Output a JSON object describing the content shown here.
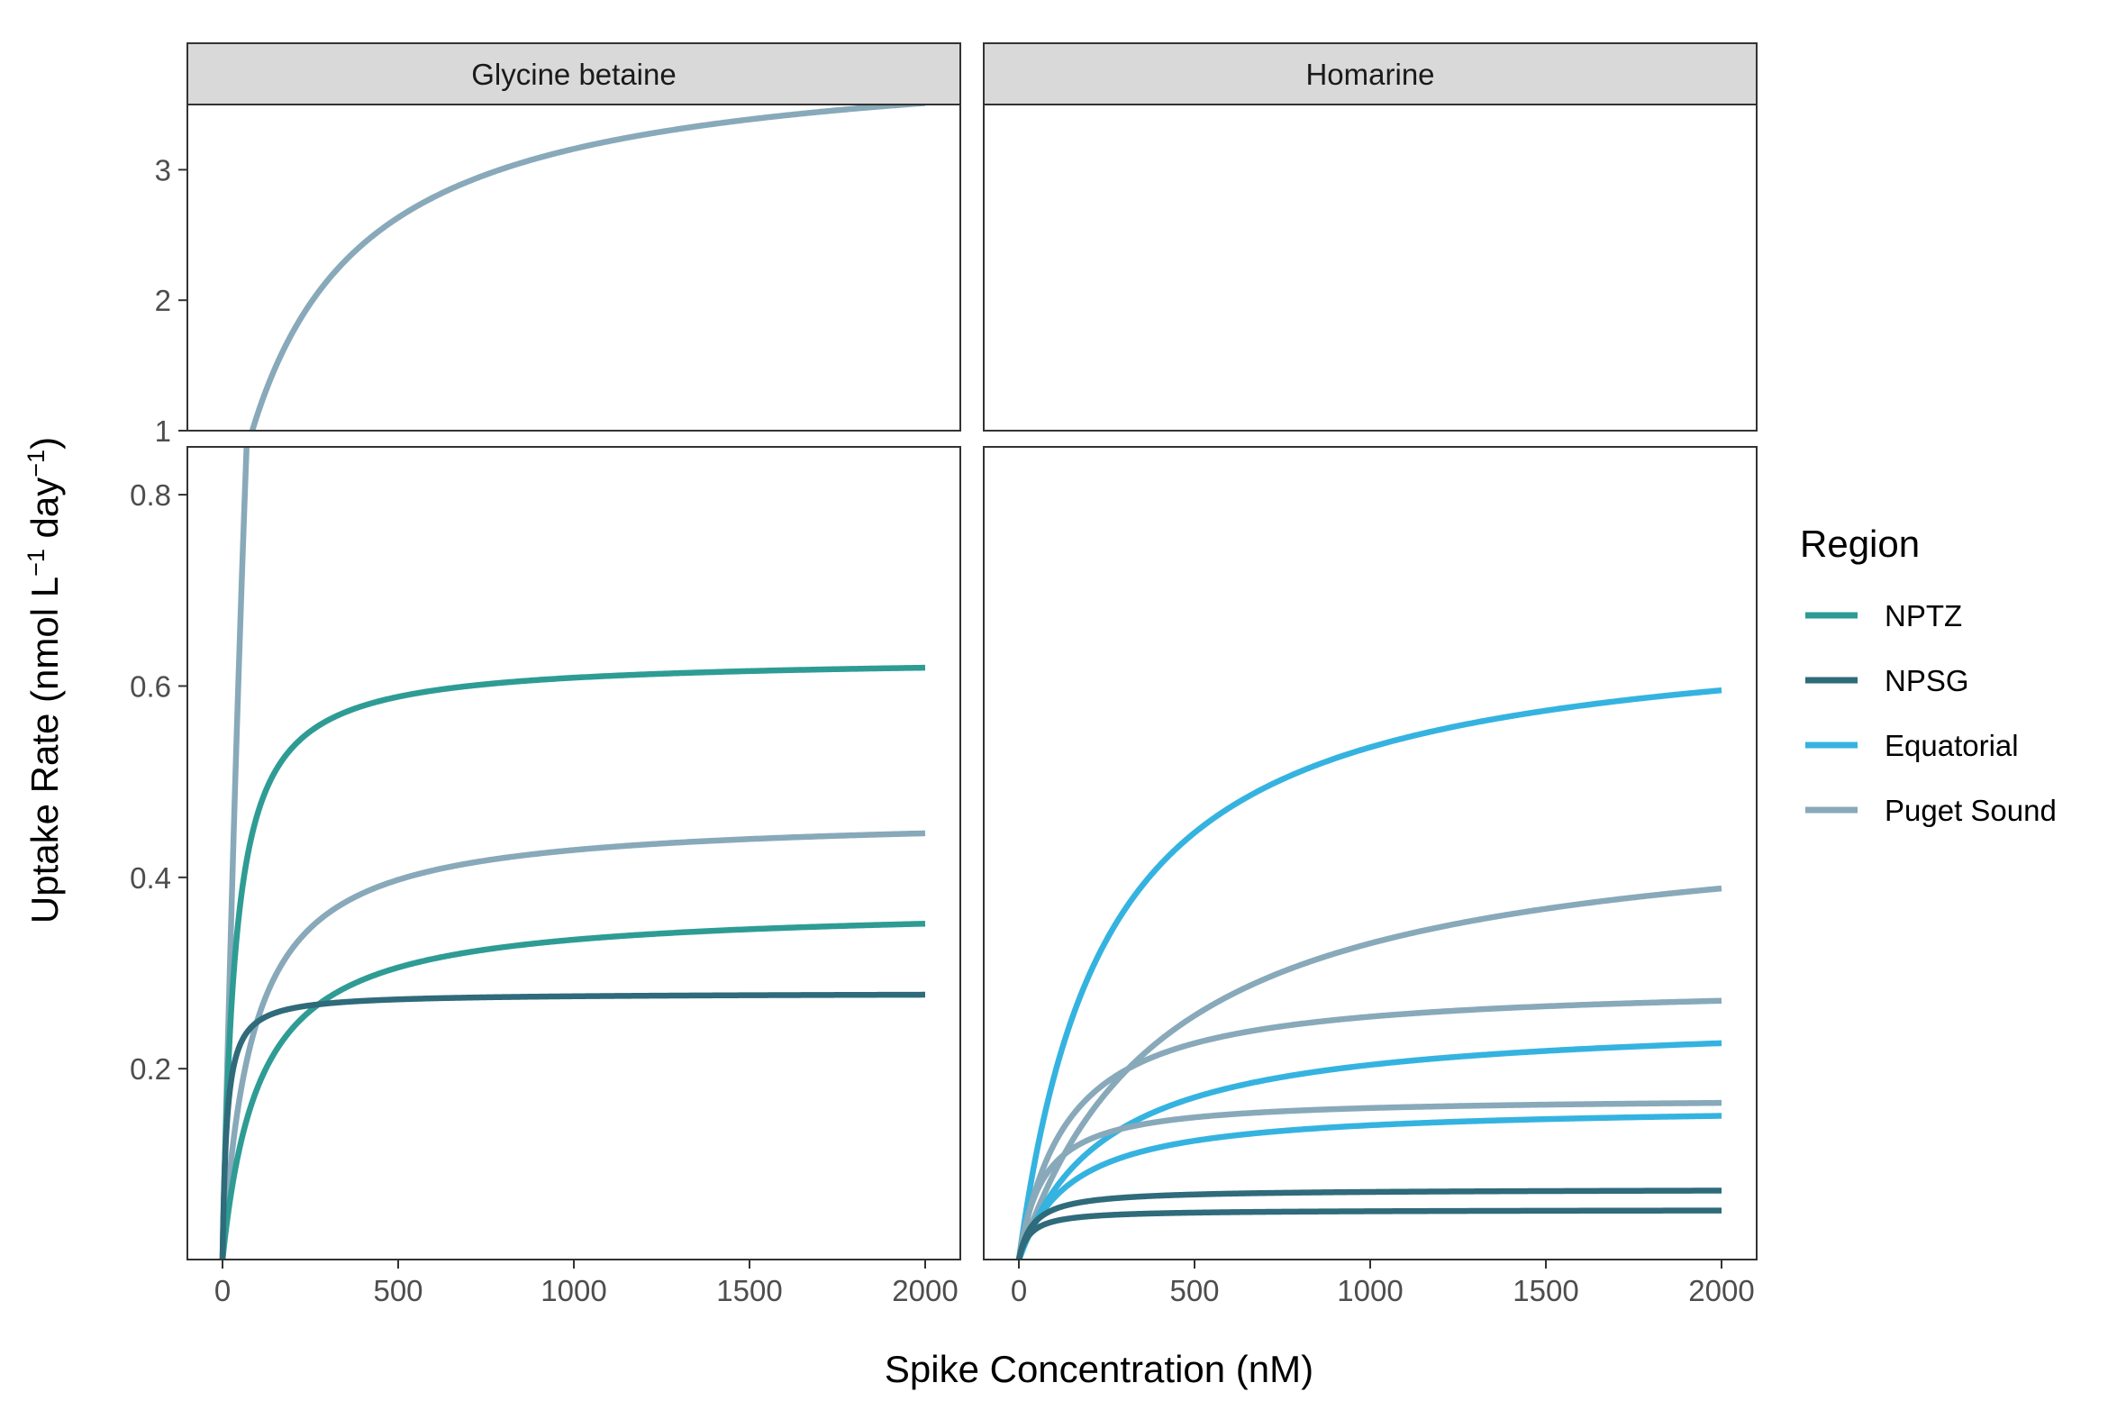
{
  "chart_data": {
    "type": "line",
    "facets": [
      "Glycine betaine",
      "Homarine"
    ],
    "xlabel": "Spike Concentration (nM)",
    "ylabel": "Uptake Rate (nmol L",
    "ylabel_sup1": "−1",
    "ylabel_mid": " day",
    "ylabel_sup2": "−1",
    "ylabel_end": ")",
    "xlim": [
      -100,
      2100
    ],
    "x_ticks": [
      0,
      500,
      1000,
      1500,
      2000
    ],
    "x_tick_labels": [
      "0",
      "500",
      "1000",
      "1500",
      "2000"
    ],
    "y_upper": {
      "lim": [
        1,
        3.5
      ],
      "ticks": [
        1,
        2,
        3
      ],
      "tick_labels": [
        "1",
        "2",
        "3"
      ]
    },
    "y_lower": {
      "lim": [
        0.0005,
        0.85
      ],
      "ticks": [
        0.2,
        0.4,
        0.6,
        0.8
      ],
      "tick_labels": [
        "0.2",
        "0.4",
        "0.6",
        "0.8"
      ]
    },
    "legend": {
      "title": "Region",
      "position": "right",
      "entries": [
        {
          "name": "NPTZ",
          "color": "#2e9c94"
        },
        {
          "name": "NPSG",
          "color": "#2f6b7a"
        },
        {
          "name": "Equatorial",
          "color": "#35b3e0"
        },
        {
          "name": "Puget Sound",
          "color": "#88a9b9"
        }
      ]
    },
    "series": [
      {
        "facet": 0,
        "region": "Puget Sound",
        "vmax": 3.95,
        "k": 250,
        "s0": 0,
        "xmin": 0,
        "xmax": 2000
      },
      {
        "facet": 0,
        "region": "NPTZ",
        "vmax": 0.63,
        "k": 35,
        "s0": 0,
        "xmin": 0,
        "xmax": 2000
      },
      {
        "facet": 0,
        "region": "Puget Sound",
        "vmax": 0.465,
        "k": 85,
        "s0": 0,
        "xmin": 0,
        "xmax": 2000
      },
      {
        "facet": 0,
        "region": "NPTZ",
        "vmax": 0.37,
        "k": 105,
        "s0": 0,
        "xmin": 0,
        "xmax": 2000
      },
      {
        "facet": 0,
        "region": "NPSG",
        "vmax": 0.279,
        "k": 12,
        "s0": 0,
        "xmin": 0,
        "xmax": 2000
      },
      {
        "facet": 1,
        "region": "Equatorial",
        "vmax": 0.67,
        "k": 250,
        "s0": 0,
        "xmin": 0,
        "xmax": 2000
      },
      {
        "facet": 1,
        "region": "Puget Sound",
        "vmax": 0.47,
        "k": 420,
        "s0": 0,
        "xmin": 0,
        "xmax": 2000
      },
      {
        "facet": 1,
        "region": "Puget Sound",
        "vmax": 0.29,
        "k": 140,
        "s0": 0,
        "xmin": 0,
        "xmax": 2000
      },
      {
        "facet": 1,
        "region": "Equatorial",
        "vmax": 0.255,
        "k": 250,
        "s0": 0,
        "xmin": 0,
        "xmax": 2000
      },
      {
        "facet": 1,
        "region": "Puget Sound",
        "vmax": 0.17,
        "k": 70,
        "s0": 0,
        "xmin": 0,
        "xmax": 2000
      },
      {
        "facet": 1,
        "region": "Equatorial",
        "vmax": 0.162,
        "k": 150,
        "s0": 0,
        "xmin": 0,
        "xmax": 2000
      },
      {
        "facet": 1,
        "region": "NPSG",
        "vmax": 0.074,
        "k": 40,
        "s0": 0,
        "xmin": 0,
        "xmax": 2000
      },
      {
        "facet": 1,
        "region": "NPSG",
        "vmax": 0.0525,
        "k": 30,
        "s0": 0,
        "xmin": 0,
        "xmax": 2000
      }
    ]
  }
}
